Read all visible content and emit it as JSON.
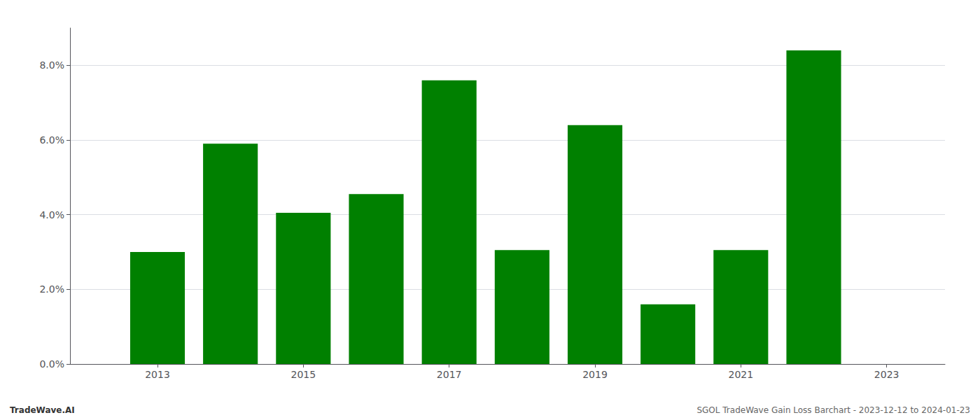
{
  "chart_data": {
    "type": "bar",
    "x": [
      2013,
      2014,
      2015,
      2016,
      2017,
      2018,
      2019,
      2020,
      2021,
      2022
    ],
    "values": [
      0.03,
      0.059,
      0.0405,
      0.0455,
      0.076,
      0.0305,
      0.064,
      0.016,
      0.0305,
      0.084
    ],
    "color": "#008000",
    "xlim": [
      2011.8,
      2023.8
    ],
    "xticks": [
      2013,
      2015,
      2017,
      2019,
      2021,
      2023
    ],
    "ylim": [
      0,
      0.09
    ],
    "yticks": [
      {
        "value": 0.0,
        "label": "0.0%"
      },
      {
        "value": 0.02,
        "label": "2.0%"
      },
      {
        "value": 0.04,
        "label": "4.0%"
      },
      {
        "value": 0.06,
        "label": "6.0%"
      },
      {
        "value": 0.08,
        "label": "8.0%"
      }
    ],
    "grid": true,
    "annotations": [
      "TradeWave.AI",
      "SGOL TradeWave Gain Loss Barchart - 2023-12-12 to 2024-01-23"
    ]
  }
}
